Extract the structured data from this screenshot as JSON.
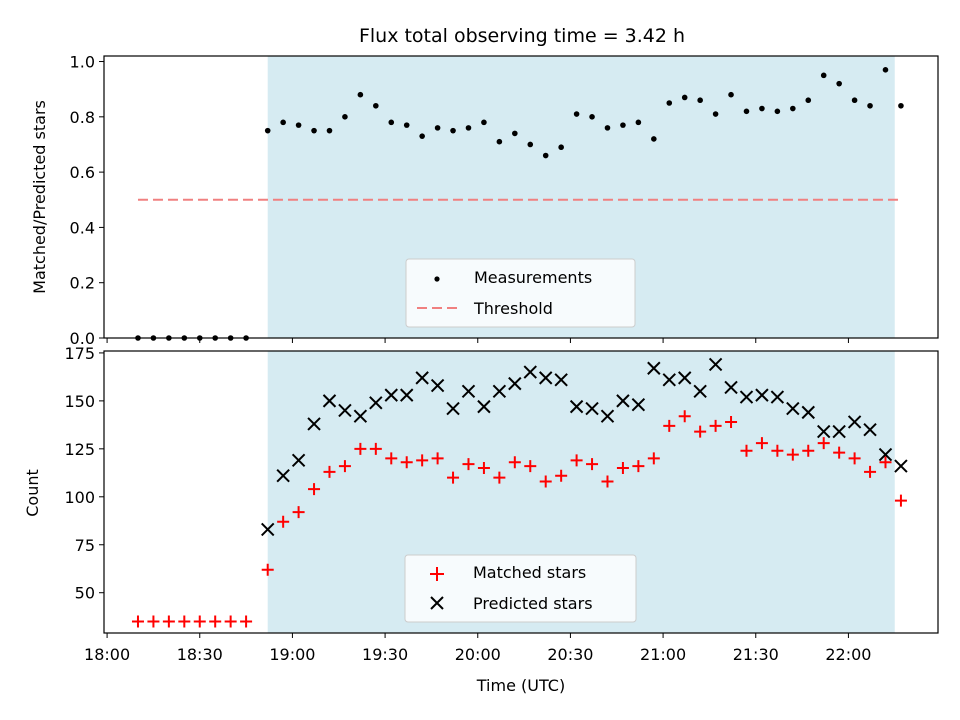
{
  "chart_data": [
    {
      "type": "scatter",
      "title": "Flux total observing time = 3.42 h",
      "ylabel": "Matched/Predicted stars",
      "xlabel": "",
      "ylim": [
        0,
        1.02
      ],
      "yticks": [
        0,
        0.2,
        0.4,
        0.6,
        0.8,
        1.0
      ],
      "ytick_labels": [
        "0.0",
        "0.2",
        "0.4",
        "0.6",
        "0.8",
        "1.0"
      ],
      "grid": false,
      "legend_position": "bottom-center",
      "shaded_interval": [
        "18:52",
        "22:15"
      ],
      "shade_color": "#add8e6",
      "series": [
        {
          "name": "Measurements",
          "marker": "dot",
          "color": "#000000",
          "x": [
            "18:10",
            "18:15",
            "18:20",
            "18:25",
            "18:30",
            "18:35",
            "18:40",
            "18:45",
            "18:52",
            "18:57",
            "19:02",
            "19:07",
            "19:12",
            "19:17",
            "19:22",
            "19:27",
            "19:32",
            "19:37",
            "19:42",
            "19:47",
            "19:52",
            "19:57",
            "20:02",
            "20:07",
            "20:12",
            "20:17",
            "20:22",
            "20:27",
            "20:32",
            "20:37",
            "20:42",
            "20:47",
            "20:52",
            "20:57",
            "21:02",
            "21:07",
            "21:12",
            "21:17",
            "21:22",
            "21:27",
            "21:32",
            "21:37",
            "21:42",
            "21:47",
            "21:52",
            "21:57",
            "22:02",
            "22:07",
            "22:12",
            "22:17"
          ],
          "y": [
            0,
            0,
            0,
            0,
            0,
            0,
            0,
            0,
            0.75,
            0.78,
            0.77,
            0.75,
            0.75,
            0.8,
            0.88,
            0.84,
            0.78,
            0.77,
            0.73,
            0.76,
            0.75,
            0.76,
            0.78,
            0.71,
            0.74,
            0.7,
            0.66,
            0.69,
            0.81,
            0.8,
            0.76,
            0.77,
            0.78,
            0.72,
            0.85,
            0.87,
            0.86,
            0.81,
            0.88,
            0.82,
            0.83,
            0.82,
            0.83,
            0.86,
            0.95,
            0.92,
            0.86,
            0.84,
            0.97,
            0.84
          ]
        },
        {
          "name": "Threshold",
          "line": "dashed",
          "color": "#f08080",
          "x": [
            "18:10",
            "22:17"
          ],
          "y": [
            0.5,
            0.5
          ]
        }
      ]
    },
    {
      "type": "scatter",
      "title": "",
      "ylabel": "Count",
      "xlabel": "Time (UTC)",
      "ylim": [
        29,
        176
      ],
      "yticks": [
        50,
        75,
        100,
        125,
        150,
        175
      ],
      "ytick_labels": [
        "50",
        "75",
        "100",
        "125",
        "150",
        "175"
      ],
      "xticks": [
        "18:00",
        "18:30",
        "19:00",
        "19:30",
        "20:00",
        "20:30",
        "21:00",
        "21:30",
        "22:00"
      ],
      "xlim": [
        "17:59",
        "22:29"
      ],
      "grid": false,
      "legend_position": "bottom-center",
      "series": [
        {
          "name": "Matched stars",
          "marker": "plus",
          "color": "#ff0000",
          "x": [
            "18:10",
            "18:15",
            "18:20",
            "18:25",
            "18:30",
            "18:35",
            "18:40",
            "18:45",
            "18:52",
            "18:57",
            "19:02",
            "19:07",
            "19:12",
            "19:17",
            "19:22",
            "19:27",
            "19:32",
            "19:37",
            "19:42",
            "19:47",
            "19:52",
            "19:57",
            "20:02",
            "20:07",
            "20:12",
            "20:17",
            "20:22",
            "20:27",
            "20:32",
            "20:37",
            "20:42",
            "20:47",
            "20:52",
            "20:57",
            "21:02",
            "21:07",
            "21:12",
            "21:17",
            "21:22",
            "21:27",
            "21:32",
            "21:37",
            "21:42",
            "21:47",
            "21:52",
            "21:57",
            "22:02",
            "22:07",
            "22:12",
            "22:17"
          ],
          "y": [
            35,
            35,
            35,
            35,
            35,
            35,
            35,
            35,
            62,
            87,
            92,
            104,
            113,
            116,
            125,
            125,
            120,
            118,
            119,
            120,
            110,
            117,
            115,
            110,
            118,
            116,
            108,
            111,
            119,
            117,
            108,
            115,
            116,
            120,
            137,
            142,
            134,
            137,
            139,
            124,
            128,
            124,
            122,
            124,
            128,
            123,
            120,
            113,
            118,
            98
          ]
        },
        {
          "name": "Predicted stars",
          "marker": "x",
          "color": "#000000",
          "x": [
            "18:52",
            "18:57",
            "19:02",
            "19:07",
            "19:12",
            "19:17",
            "19:22",
            "19:27",
            "19:32",
            "19:37",
            "19:42",
            "19:47",
            "19:52",
            "19:57",
            "20:02",
            "20:07",
            "20:12",
            "20:17",
            "20:22",
            "20:27",
            "20:32",
            "20:37",
            "20:42",
            "20:47",
            "20:52",
            "20:57",
            "21:02",
            "21:07",
            "21:12",
            "21:17",
            "21:22",
            "21:27",
            "21:32",
            "21:37",
            "21:42",
            "21:47",
            "21:52",
            "21:57",
            "22:02",
            "22:07",
            "22:12",
            "22:17"
          ],
          "y": [
            83,
            111,
            119,
            138,
            150,
            145,
            142,
            149,
            153,
            153,
            162,
            158,
            146,
            155,
            147,
            155,
            159,
            165,
            162,
            161,
            147,
            146,
            142,
            150,
            148,
            167,
            161,
            162,
            155,
            169,
            157,
            152,
            153,
            152,
            146,
            144,
            134,
            134,
            139,
            135,
            122,
            116
          ]
        }
      ]
    }
  ]
}
